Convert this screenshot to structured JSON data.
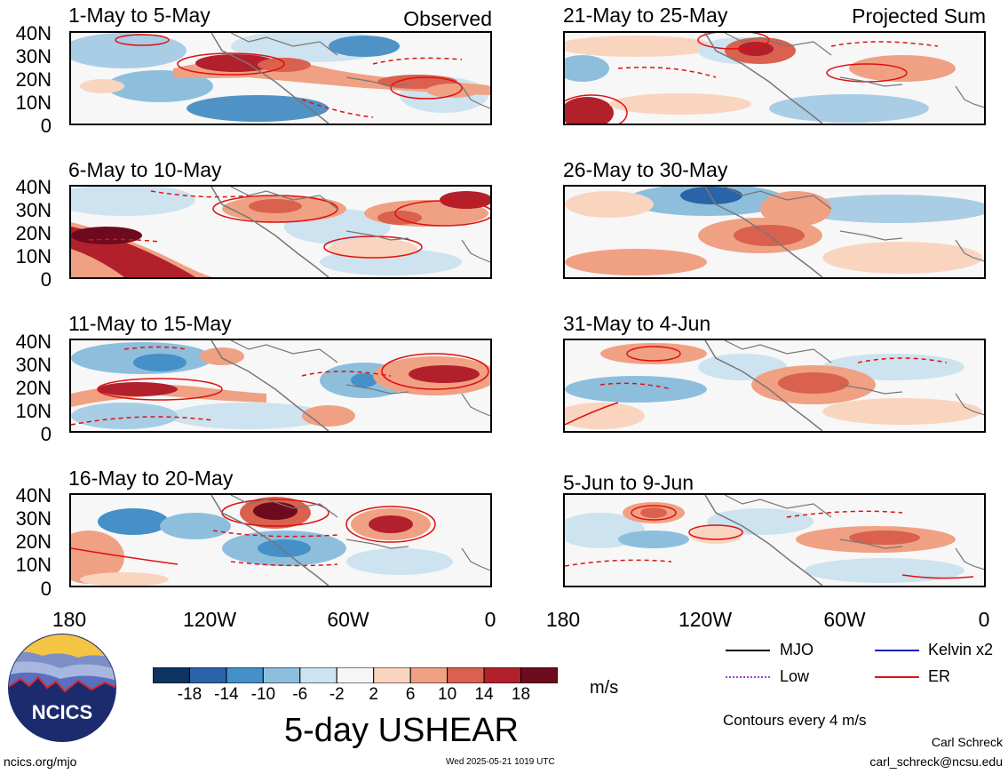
{
  "header": {
    "left_tag": "Observed",
    "right_tag": "Projected Sum"
  },
  "panels_left": [
    {
      "title": "1-May to 5-May"
    },
    {
      "title": "6-May to 10-May"
    },
    {
      "title": "11-May to 15-May"
    },
    {
      "title": "16-May to 20-May"
    }
  ],
  "panels_right": [
    {
      "title": "21-May to 25-May"
    },
    {
      "title": "26-May to 30-May"
    },
    {
      "title": "31-May to 4-Jun"
    },
    {
      "title": "5-Jun to 9-Jun"
    }
  ],
  "y_axis_labels": [
    "40N",
    "30N",
    "20N",
    "10N",
    "0"
  ],
  "x_axis_labels": [
    "180",
    "120W",
    "60W",
    "0"
  ],
  "colorbar": {
    "ticks": [
      "-18",
      "-14",
      "-10",
      "-6",
      "-2",
      "2",
      "6",
      "10",
      "14",
      "18"
    ],
    "colors": [
      "#0d3360",
      "#2a64a8",
      "#4590c8",
      "#8dbfdd",
      "#cde3ef",
      "#f6f6f6",
      "#f9d5c0",
      "#f0a183",
      "#d9614e",
      "#b2202c",
      "#6e0a1e"
    ],
    "units": "m/s"
  },
  "title": "5-day USHEAR",
  "legend": {
    "items": [
      {
        "label": "MJO",
        "color": "#000000",
        "style": "solid"
      },
      {
        "label": "Kelvin x2",
        "color": "#1020c0",
        "style": "solid"
      },
      {
        "label": "Low",
        "color": "#a040e0",
        "style": "dotted"
      },
      {
        "label": "ER",
        "color": "#e01010",
        "style": "solid"
      }
    ],
    "note": "Contours every 4 m/s"
  },
  "logo": {
    "text": "NCICS"
  },
  "footer": {
    "url": "ncics.org/mjo",
    "timestamp": "Wed 2025-05-21 1019 UTC",
    "author": "Carl Schreck",
    "email": "carl_schreck@ncsu.edu"
  }
}
